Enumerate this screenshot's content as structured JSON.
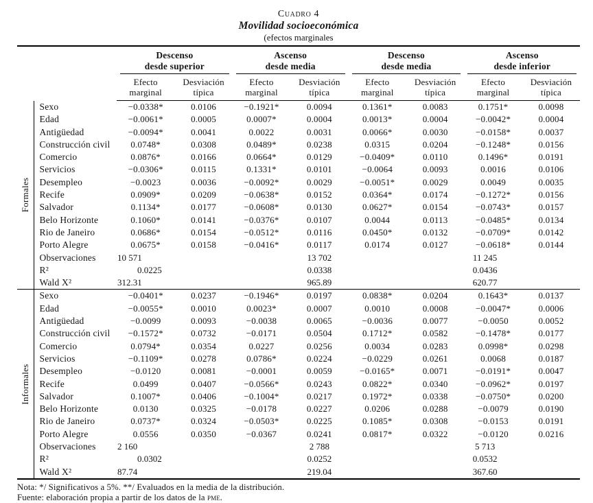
{
  "title": {
    "label": "Cuadro 4",
    "subtitle": "Movilidad socioeconómica",
    "note": "(efectos marginales"
  },
  "header": {
    "groups": [
      {
        "line1": "Descenso",
        "line2": "desde superior"
      },
      {
        "line1": "Ascenso",
        "line2": "desde media"
      },
      {
        "line1": "Descenso",
        "line2": "desde media"
      },
      {
        "line1": "Ascenso",
        "line2": "desde inferior"
      }
    ],
    "subs": [
      {
        "l1": "Efecto",
        "l2": "marginal"
      },
      {
        "l1": "Desviación",
        "l2": "típica"
      },
      {
        "l1": "Efecto",
        "l2": "marginal"
      },
      {
        "l1": "Desviación",
        "l2": "típica"
      },
      {
        "l1": "Efecto",
        "l2": "marginal"
      },
      {
        "l1": "Desviación",
        "l2": "típica"
      },
      {
        "l1": "Efecto",
        "l2": "marginal"
      },
      {
        "l1": "Desviación",
        "l2": "típica"
      }
    ]
  },
  "sections": [
    {
      "label": "Formales",
      "rows": [
        {
          "label": "Sexo",
          "values": [
            "−0.0338*",
            "0.0106",
            "−0.1921*",
            "0.0094",
            "0.1361*",
            "0.0083",
            "0.1751*",
            "0.0098"
          ]
        },
        {
          "label": "Edad",
          "values": [
            "−0.0061*",
            "0.0005",
            "0.0007*",
            "0.0004",
            "0.0013*",
            "0.0004",
            "−0.0042*",
            "0.0004"
          ]
        },
        {
          "label": "Antigüedad",
          "values": [
            "−0.0094*",
            "0.0041",
            "0.0022",
            "0.0031",
            "0.0066*",
            "0.0030",
            "−0.0158*",
            "0.0037"
          ]
        },
        {
          "label": "Construcción civil",
          "values": [
            "0.0748*",
            "0.0308",
            "0.0489*",
            "0.0238",
            "0.0315",
            "0.0204",
            "−0.1248*",
            "0.0156"
          ]
        },
        {
          "label": "Comercio",
          "values": [
            "0.0876*",
            "0.0166",
            "0.0664*",
            "0.0129",
            "−0.0409*",
            "0.0110",
            "0.1496*",
            "0.0191"
          ]
        },
        {
          "label": "Servicios",
          "values": [
            "−0.0306*",
            "0.0115",
            "0.1331*",
            "0.0101",
            "−0.0064",
            "0.0093",
            "0.0016",
            "0.0106"
          ]
        },
        {
          "label": "Desempleo",
          "values": [
            "−0.0023",
            "0.0036",
            "−0.0092*",
            "0.0029",
            "−0.0051*",
            "0.0029",
            "0.0049",
            "0.0035"
          ]
        },
        {
          "label": "Recife",
          "values": [
            "0.0909*",
            "0.0209",
            "−0.0638*",
            "0.0152",
            "0.0364*",
            "0.0174",
            "−0.1272*",
            "0.0156"
          ]
        },
        {
          "label": "Salvador",
          "values": [
            "0.1134*",
            "0.0177",
            "−0.0608*",
            "0.0130",
            "0.0627*",
            "0.0154",
            "−0.0743*",
            "0.0157"
          ]
        },
        {
          "label": "Belo Horizonte",
          "values": [
            "0.1060*",
            "0.0141",
            "−0.0376*",
            "0.0107",
            "0.0044",
            "0.0113",
            "−0.0485*",
            "0.0134"
          ]
        },
        {
          "label": "Rio de Janeiro",
          "values": [
            "0.0686*",
            "0.0154",
            "−0.0512*",
            "0.0116",
            "0.0450*",
            "0.0132",
            "−0.0709*",
            "0.0142"
          ]
        },
        {
          "label": "Porto Alegre",
          "values": [
            "0.0675*",
            "0.0158",
            "−0.0416*",
            "0.0117",
            "0.0174",
            "0.0127",
            "−0.0618*",
            "0.0144"
          ]
        }
      ],
      "stats": [
        {
          "label": "Observaciones",
          "values": [
            "10 571",
            "13 702",
            "11 245"
          ]
        },
        {
          "label": "R²",
          "values": [
            "0.0225",
            "0.0338",
            "0.0436"
          ]
        },
        {
          "label": "Wald X²",
          "values": [
            "312.31",
            "965.89",
            "620.77"
          ]
        }
      ]
    },
    {
      "label": "Informales",
      "rows": [
        {
          "label": "Sexo",
          "values": [
            "−0.0401*",
            "0.0237",
            "−0.1946*",
            "0.0197",
            "0.0838*",
            "0.0204",
            "0.1643*",
            "0.0137"
          ]
        },
        {
          "label": "Edad",
          "values": [
            "−0.0055*",
            "0.0010",
            "0.0023*",
            "0.0007",
            "0.0010",
            "0.0008",
            "−0.0047*",
            "0.0006"
          ]
        },
        {
          "label": "Antigüedad",
          "values": [
            "−0.0099",
            "0.0093",
            "−0.0038",
            "0.0065",
            "−0.0036",
            "0.0077",
            "−0.0050",
            "0.0052"
          ]
        },
        {
          "label": "Construcción civil",
          "values": [
            "−0.1572*",
            "0.0732",
            "−0.0171",
            "0.0504",
            "0.1712*",
            "0.0582",
            "−0.1478*",
            "0.0177"
          ]
        },
        {
          "label": "Comercio",
          "values": [
            "0.0794*",
            "0.0354",
            "0.0227",
            "0.0256",
            "0.0034",
            "0.0283",
            "0.0998*",
            "0.0298"
          ]
        },
        {
          "label": "Servicios",
          "values": [
            "−0.1109*",
            "0.0278",
            "0.0786*",
            "0.0224",
            "−0.0229",
            "0.0261",
            "0.0068",
            "0.0187"
          ]
        },
        {
          "label": "Desempleo",
          "values": [
            "−0.0120",
            "0.0081",
            "−0.0001",
            "0.0059",
            "−0.0165*",
            "0.0071",
            "−0.0191*",
            "0.0047"
          ]
        },
        {
          "label": "Recife",
          "values": [
            "0.0499",
            "0.0407",
            "−0.0566*",
            "0.0243",
            "0.0822*",
            "0.0340",
            "−0.0962*",
            "0.0197"
          ]
        },
        {
          "label": "Salvador",
          "values": [
            "0.1007*",
            "0.0406",
            "−0.1004*",
            "0.0217",
            "0.1972*",
            "0.0338",
            "−0.0750*",
            "0.0200"
          ]
        },
        {
          "label": "Belo Horizonte",
          "values": [
            "0.0130",
            "0.0325",
            "−0.0178",
            "0.0227",
            "0.0206",
            "0.0288",
            "−0.0079",
            "0.0190"
          ]
        },
        {
          "label": "Rio de Janeiro",
          "values": [
            "0.0737*",
            "0.0324",
            "−0.0503*",
            "0.0225",
            "0.1085*",
            "0.0308",
            "−0.0153",
            "0.0191"
          ]
        },
        {
          "label": "Porto Alegre",
          "values": [
            "0.0556",
            "0.0350",
            "−0.0367",
            "0.0241",
            "0.0817*",
            "0.0322",
            "−0.0120",
            "0.0216"
          ]
        }
      ],
      "stats": [
        {
          "label": "Observaciones",
          "values": [
            "2 160",
            "2 788",
            "5 713"
          ]
        },
        {
          "label": "R²",
          "values": [
            "0.0302",
            "0.0252",
            "0.0532"
          ]
        },
        {
          "label": "Wald X²",
          "values": [
            "87.74",
            "219.04",
            "367.60"
          ]
        }
      ]
    }
  ],
  "notes": {
    "nota": "Nota: */ Significativos a 5%. **/ Evaluados en la media de la distribución.",
    "fuente_prefix": "Fuente: elaboración propia a partir de los datos de la ",
    "fuente_acronym": "pme",
    "fuente_suffix": "."
  }
}
